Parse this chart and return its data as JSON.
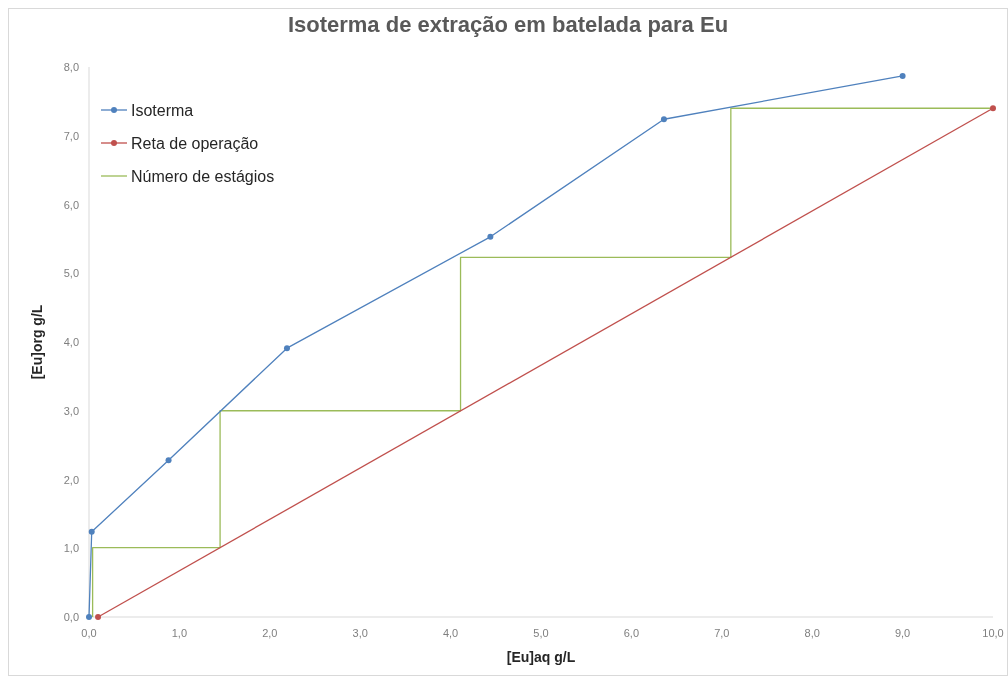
{
  "chart_data": {
    "type": "line",
    "title": "Isoterma de extração em batelada para Eu",
    "xlabel": "[Eu]aq g/L",
    "ylabel": "[Eu]org g/L",
    "xlim": [
      0,
      10
    ],
    "ylim": [
      0,
      8
    ],
    "xticks": [
      {
        "value": 0,
        "label": "0,0"
      },
      {
        "value": 1,
        "label": "1,0"
      },
      {
        "value": 2,
        "label": "2,0"
      },
      {
        "value": 3,
        "label": "3,0"
      },
      {
        "value": 4,
        "label": "4,0"
      },
      {
        "value": 5,
        "label": "5,0"
      },
      {
        "value": 6,
        "label": "6,0"
      },
      {
        "value": 7,
        "label": "7,0"
      },
      {
        "value": 8,
        "label": "8,0"
      },
      {
        "value": 9,
        "label": "9,0"
      },
      {
        "value": 10,
        "label": "10,0"
      }
    ],
    "yticks": [
      {
        "value": 0,
        "label": "0,0"
      },
      {
        "value": 1,
        "label": "1,0"
      },
      {
        "value": 2,
        "label": "2,0"
      },
      {
        "value": 3,
        "label": "3,0"
      },
      {
        "value": 4,
        "label": "4,0"
      },
      {
        "value": 5,
        "label": "5,0"
      },
      {
        "value": 6,
        "label": "6,0"
      },
      {
        "value": 7,
        "label": "7,0"
      },
      {
        "value": 8,
        "label": "8,0"
      }
    ],
    "grid": false,
    "legend": "top left",
    "series": [
      {
        "name": "Isoterma",
        "color": "#4f81bd",
        "marker": "circle",
        "x": [
          0,
          0.03,
          0.88,
          2.19,
          4.44,
          6.36,
          9.0
        ],
        "values": [
          0,
          1.24,
          2.28,
          3.91,
          5.53,
          7.24,
          7.87
        ]
      },
      {
        "name": "Reta de operação",
        "color": "#c0504d",
        "marker": "circle",
        "x": [
          0.1,
          10
        ],
        "values": [
          0,
          7.4
        ]
      },
      {
        "name": "Número de estágios",
        "color": "#9bbb59",
        "marker": "none",
        "x": [
          10,
          7.1,
          7.1,
          4.11,
          4.11,
          1.45,
          1.45,
          0.04,
          0.04
        ],
        "values": [
          7.4,
          7.4,
          5.23,
          5.23,
          3.0,
          3.0,
          1.01,
          1.01,
          0
        ]
      }
    ]
  }
}
